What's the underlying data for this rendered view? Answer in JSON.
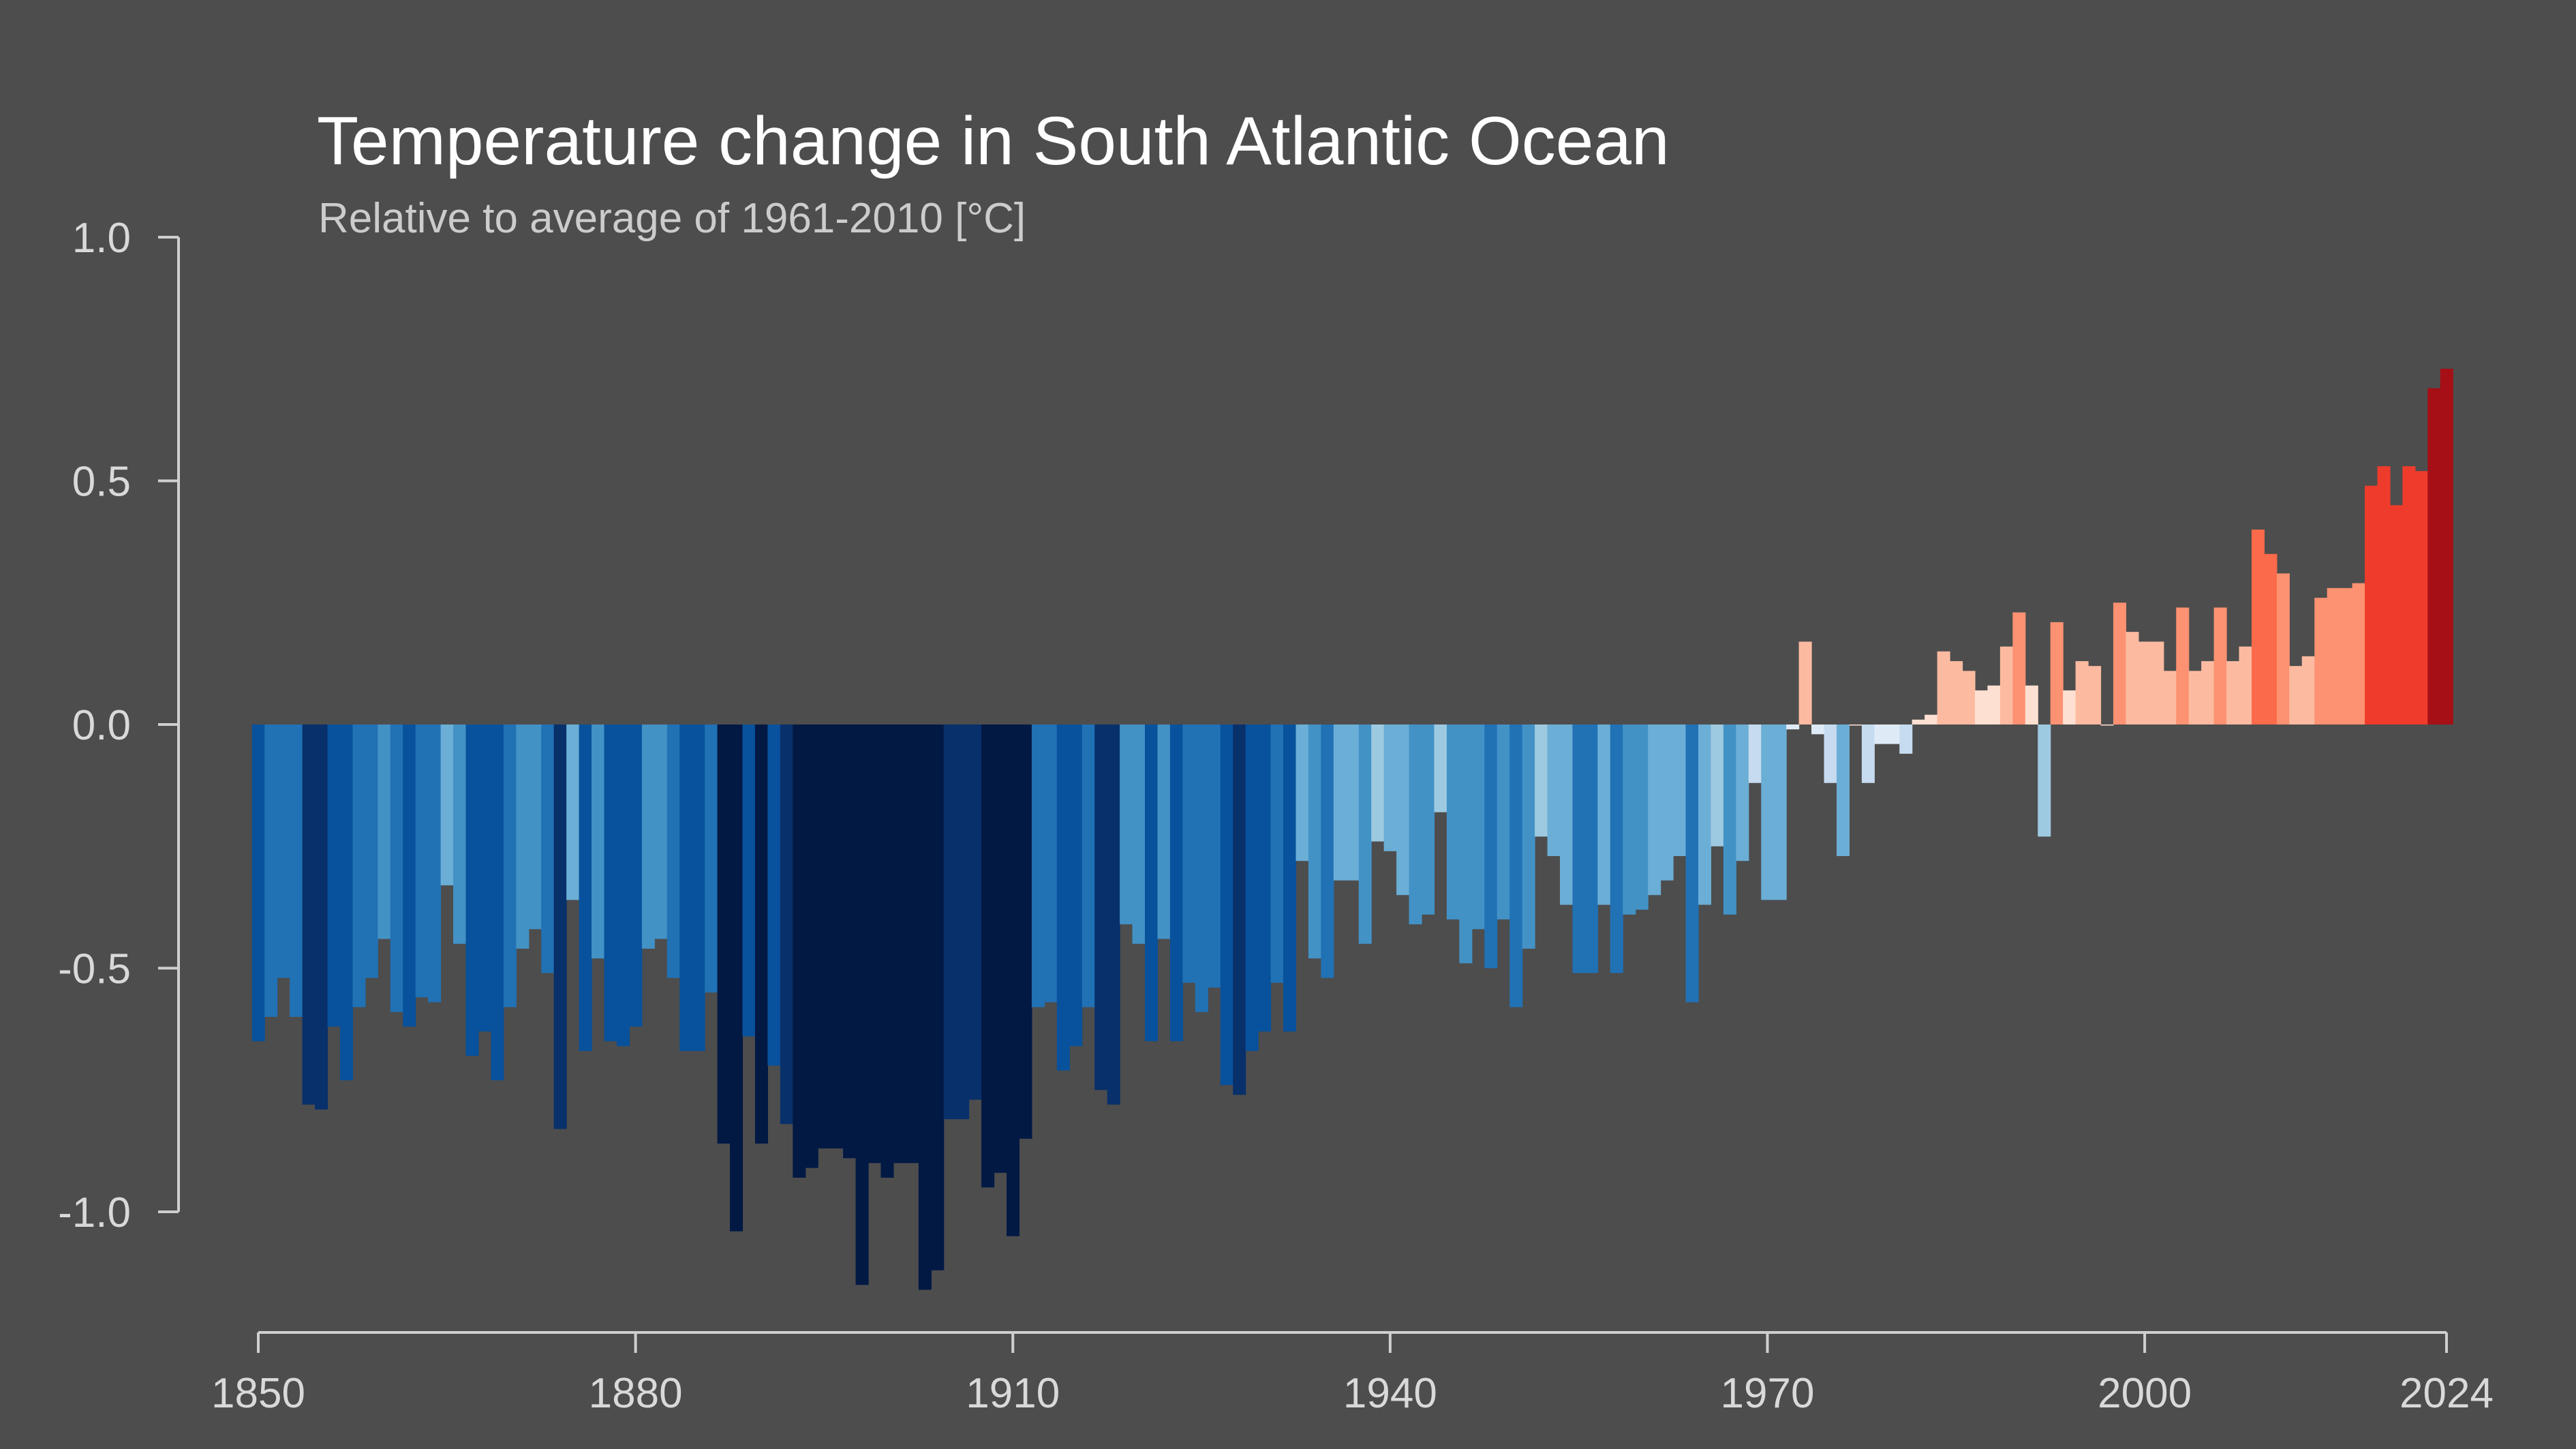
{
  "chart_data": {
    "type": "bar",
    "title": "Temperature change in South Atlantic Ocean",
    "subtitle": "Relative to average of 1961-2010  [°C]",
    "xlabel": "",
    "ylabel": "",
    "x_start": 1850,
    "x_end": 2024,
    "xlim": [
      1850,
      2024
    ],
    "ylim": [
      -1.0,
      1.0
    ],
    "x_ticks": [
      1850,
      1880,
      1910,
      1940,
      1970,
      2000,
      2024
    ],
    "y_ticks": [
      1.0,
      0.5,
      0.0,
      -0.5,
      -1.0
    ],
    "y_tick_labels": [
      "1.0",
      "0.5",
      "0.0",
      "-0.5",
      "-1.0"
    ],
    "grid": false,
    "legend": "none",
    "color_scale": {
      "cold": [
        "#08306b",
        "#08519c",
        "#2171b5",
        "#4292c6",
        "#6baed6",
        "#9ecae1",
        "#c6dbef",
        "#deebf7"
      ],
      "warm": [
        "#fee0d2",
        "#fcbba1",
        "#fc9272",
        "#fb6a4a",
        "#ef3b2c",
        "#cb181d",
        "#a50f15"
      ]
    },
    "values": [
      -0.65,
      -0.6,
      -0.52,
      -0.6,
      -0.78,
      -0.79,
      -0.62,
      -0.73,
      -0.58,
      -0.52,
      -0.44,
      -0.59,
      -0.62,
      -0.56,
      -0.57,
      -0.33,
      -0.45,
      -0.68,
      -0.63,
      -0.73,
      -0.58,
      -0.46,
      -0.42,
      -0.51,
      -0.83,
      -0.36,
      -0.67,
      -0.48,
      -0.65,
      -0.66,
      -0.62,
      -0.46,
      -0.44,
      -0.52,
      -0.67,
      -0.67,
      -0.55,
      -0.86,
      -1.04,
      -0.64,
      -0.86,
      -0.7,
      -0.82,
      -0.93,
      -0.91,
      -0.87,
      -0.87,
      -0.89,
      -1.15,
      -0.9,
      -0.93,
      -0.9,
      -0.9,
      -1.16,
      -1.12,
      -0.81,
      -0.81,
      -0.77,
      -0.95,
      -0.92,
      -1.05,
      -0.85,
      -0.58,
      -0.57,
      -0.71,
      -0.66,
      -0.58,
      -0.75,
      -0.78,
      -0.41,
      -0.45,
      -0.65,
      -0.44,
      -0.65,
      -0.53,
      -0.59,
      -0.54,
      -0.74,
      -0.76,
      -0.67,
      -0.63,
      -0.53,
      -0.63,
      -0.28,
      -0.48,
      -0.52,
      -0.32,
      -0.32,
      -0.45,
      -0.24,
      -0.26,
      -0.35,
      -0.41,
      -0.39,
      -0.18,
      -0.4,
      -0.49,
      -0.42,
      -0.5,
      -0.4,
      -0.58,
      -0.46,
      -0.23,
      -0.27,
      -0.37,
      -0.51,
      -0.51,
      -0.37,
      -0.51,
      -0.39,
      -0.38,
      -0.35,
      -0.32,
      -0.27,
      -0.57,
      -0.37,
      -0.25,
      -0.39,
      -0.28,
      -0.12,
      -0.36,
      -0.36,
      -0.01,
      0.17,
      -0.02,
      -0.12,
      -0.27,
      0.0,
      -0.12,
      -0.04,
      -0.04,
      -0.06,
      0.01,
      0.02,
      0.15,
      0.13,
      0.11,
      0.07,
      0.08,
      0.16,
      0.23,
      0.08,
      -0.23,
      0.21,
      0.07,
      0.13,
      0.12,
      0.0,
      0.25,
      0.19,
      0.17,
      0.17,
      0.11,
      0.24,
      0.11,
      0.13,
      0.24,
      0.13,
      0.16,
      0.4,
      0.35,
      0.31,
      0.12,
      0.14,
      0.26,
      0.28,
      0.28,
      0.29,
      0.49,
      0.53,
      0.45,
      0.53,
      0.52,
      0.69,
      0.73
    ]
  }
}
